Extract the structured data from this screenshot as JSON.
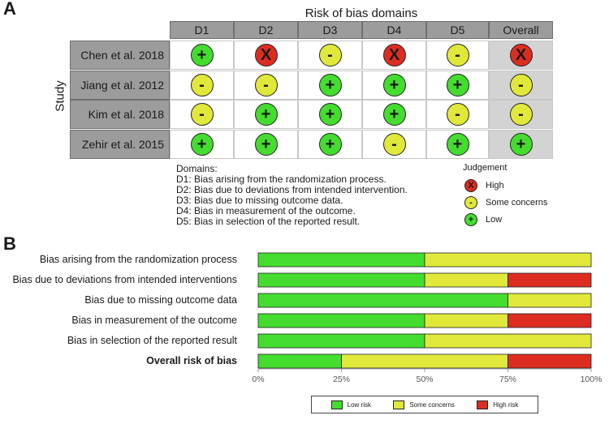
{
  "panel_a_label": "A",
  "panel_b_label": "B",
  "colors": {
    "low": "#44dd2f",
    "some": "#e0e93a",
    "high": "#dd2d20",
    "header": "#9c9c9c",
    "overall_bg": "#d3d3d3"
  },
  "chart_data": [
    {
      "type": "table",
      "title": "Risk of bias domains",
      "row_axis_label": "Study",
      "columns": [
        "D1",
        "D2",
        "D3",
        "D4",
        "D5",
        "Overall"
      ],
      "rows": [
        {
          "study": "Chen et al. 2018",
          "judgements": [
            "low",
            "high",
            "some",
            "high",
            "some",
            "high"
          ]
        },
        {
          "study": "Jiang et al. 2012",
          "judgements": [
            "some",
            "some",
            "low",
            "low",
            "low",
            "some"
          ]
        },
        {
          "study": "Kim et al. 2018",
          "judgements": [
            "some",
            "low",
            "low",
            "low",
            "some",
            "some"
          ]
        },
        {
          "study": "Zehir et al. 2015",
          "judgements": [
            "low",
            "low",
            "low",
            "some",
            "low",
            "low"
          ]
        }
      ],
      "symbols": {
        "low": "+",
        "some": "-",
        "high": "X"
      },
      "domains_note": {
        "heading": "Domains:",
        "lines": [
          "D1: Bias arising from the randomization process.",
          "D2: Bias due to deviations from intended intervention.",
          "D3: Bias due to missing outcome data.",
          "D4: Bias in measurement of the outcome.",
          "D5: Bias in selection of the reported result."
        ]
      },
      "legend": {
        "title": "Judgement",
        "items": [
          {
            "key": "high",
            "symbol": "X",
            "label": "High"
          },
          {
            "key": "some",
            "symbol": "-",
            "label": "Some concerns"
          },
          {
            "key": "low",
            "symbol": "+",
            "label": "Low"
          }
        ]
      }
    },
    {
      "type": "bar",
      "stacked": true,
      "orientation": "horizontal",
      "categories": [
        "Bias arising from the randomization process",
        "Bias due to deviations from intended interventions",
        "Bias due to missing outcome data",
        "Bias in measurement of the outcome",
        "Bias in selection of the reported result",
        "Overall risk of bias"
      ],
      "bold_categories": [
        "Overall risk of bias"
      ],
      "series": [
        {
          "name": "Low risk",
          "key": "low",
          "values": [
            50,
            50,
            75,
            50,
            50,
            25
          ]
        },
        {
          "name": "Some concerns",
          "key": "some",
          "values": [
            50,
            25,
            25,
            25,
            50,
            50
          ]
        },
        {
          "name": "High risk",
          "key": "high",
          "values": [
            0,
            25,
            0,
            25,
            0,
            25
          ]
        }
      ],
      "xlim": [
        0,
        100
      ],
      "xticks": [
        "0%",
        "25%",
        "50%",
        "75%",
        "100%"
      ],
      "legend_position": "bottom"
    }
  ]
}
